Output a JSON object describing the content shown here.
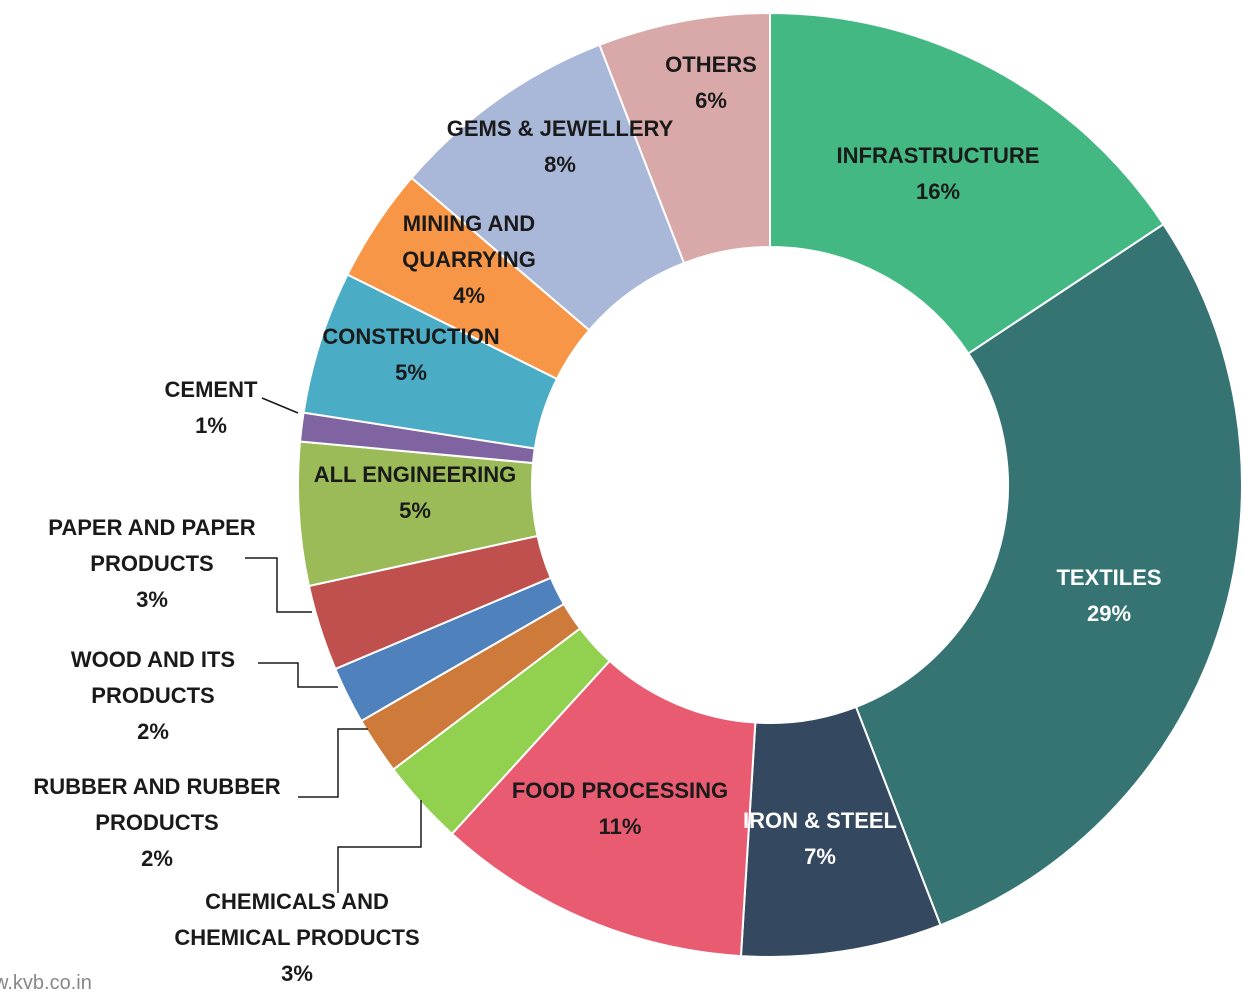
{
  "chart_data": {
    "type": "donut",
    "categories": [
      "INFRASTRUCTURE",
      "TEXTILES",
      "IRON & STEEL",
      "FOOD PROCESSING",
      "CHEMICALS AND CHEMICAL PRODUCTS",
      "RUBBER AND RUBBER PRODUCTS",
      "WOOD AND ITS PRODUCTS",
      "PAPER AND PAPER PRODUCTS",
      "ALL ENGINEERING",
      "CEMENT",
      "CONSTRUCTION",
      "MINING AND QUARRYING",
      "GEMS & JEWELLERY",
      "OTHERS"
    ],
    "values": [
      16,
      29,
      7,
      11,
      3,
      2,
      2,
      3,
      5,
      1,
      5,
      4,
      8,
      6
    ],
    "value_labels": [
      "16%",
      "29%",
      "7%",
      "11%",
      "3%",
      "2%",
      "2%",
      "3%",
      "5%",
      "1%",
      "5%",
      "4%",
      "8%",
      "6%"
    ],
    "colors": [
      "#44b883",
      "#357472",
      "#344860",
      "#e95b70",
      "#92d050",
      "#cd7a3a",
      "#4f81bd",
      "#c0504d",
      "#9bbb59",
      "#8064a2",
      "#4bacc6",
      "#f79646",
      "#a9b8d8",
      "#d9a9a9"
    ]
  },
  "footer": "w.kvb.co.in"
}
